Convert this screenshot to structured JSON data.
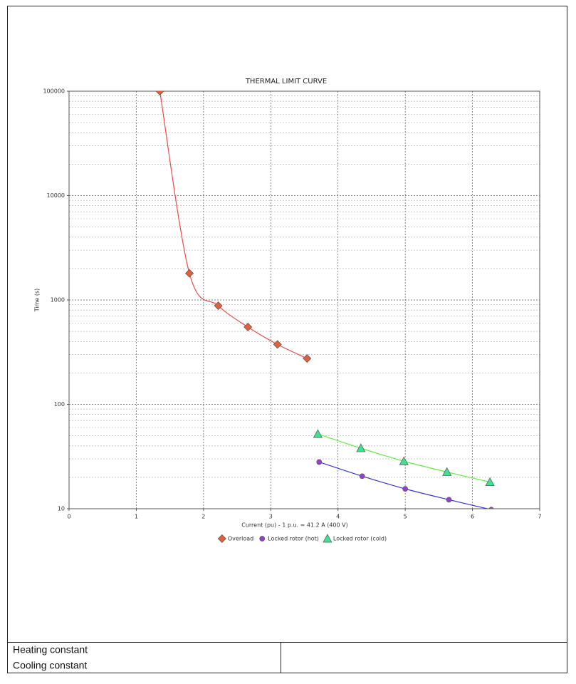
{
  "chart_data": {
    "type": "line",
    "title": "THERMAL LIMIT CURVE",
    "x_label": "Current (pu) - 1 p.u. = 41.2 A (400 V)",
    "y_label": "Time (s)",
    "xlim": [
      0,
      7
    ],
    "xticks": [
      0,
      1,
      2,
      3,
      4,
      5,
      6,
      7
    ],
    "ylim": [
      10,
      100000
    ],
    "yticks": [
      10,
      100,
      1000,
      10000,
      100000
    ],
    "log_y": true,
    "grid": true,
    "legend": "bottom",
    "series": [
      {
        "name": "Overload",
        "color": "#f04848",
        "marker_color": "#e0603c",
        "marker": "diamond",
        "x": [
          1.35,
          1.79,
          2.22,
          2.66,
          3.1,
          3.54
        ],
        "values": [
          100000,
          1800,
          880,
          550,
          375,
          275
        ]
      },
      {
        "name": "Locked rotor (hot)",
        "color": "#3434e0",
        "marker_color": "#9440d0",
        "marker": "circle",
        "x": [
          3.72,
          4.36,
          5.0,
          5.65,
          6.28
        ],
        "values": [
          28,
          20.5,
          15.5,
          12.2,
          9.8
        ]
      },
      {
        "name": "Locked rotor (cold)",
        "color": "#60f040",
        "marker_color": "#40e090",
        "marker": "triangle",
        "x": [
          3.7,
          4.34,
          4.98,
          5.62,
          6.26
        ],
        "values": [
          52,
          38,
          28.5,
          22.5,
          18
        ]
      }
    ]
  },
  "table": {
    "rows": [
      [
        "Heating constant"
      ],
      [
        "Cooling constant"
      ]
    ]
  }
}
